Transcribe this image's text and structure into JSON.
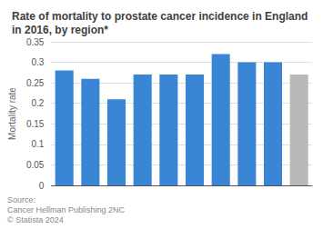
{
  "chart_data": {
    "type": "bar",
    "title": "Rate of mortality to prostate cancer incidence in England in 2016, by region*",
    "ylabel": "Mortality rate",
    "categories": [
      null,
      null,
      null,
      null,
      null,
      null,
      null,
      null,
      null,
      null
    ],
    "values": [
      0.28,
      0.26,
      0.21,
      0.27,
      0.27,
      0.27,
      0.32,
      0.3,
      0.3,
      0.27
    ],
    "colors": [
      "#3a86d4",
      "#3a86d4",
      "#3a86d4",
      "#3a86d4",
      "#3a86d4",
      "#3a86d4",
      "#3a86d4",
      "#3a86d4",
      "#3a86d4",
      "#b8b8b8"
    ],
    "ylim": [
      0,
      0.35
    ],
    "yticks": [
      0,
      0.05,
      0.1,
      0.15,
      0.2,
      0.25,
      0.3,
      0.35
    ],
    "grid": true,
    "tick_labels": "y",
    "annotations": [
      "Source:",
      "Cancer Hellman Publishing 2NC",
      "© Statista 2024"
    ]
  }
}
